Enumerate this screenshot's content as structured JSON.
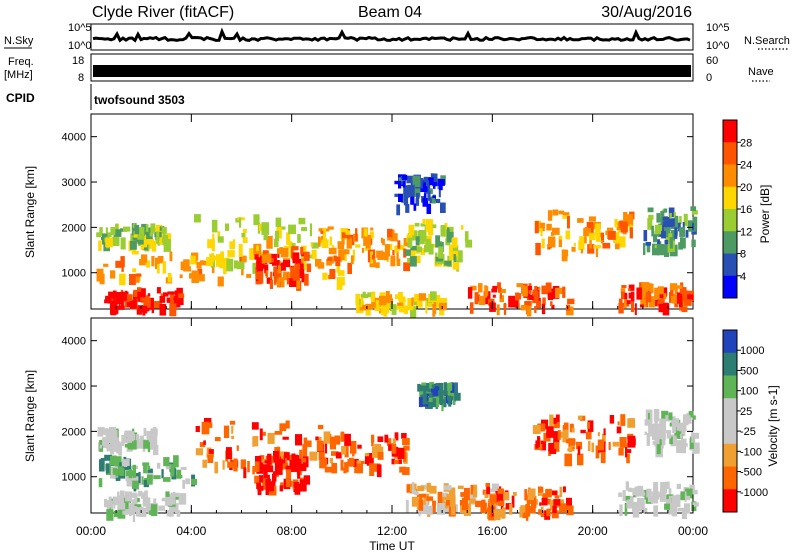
{
  "header": {
    "station": "Clyde River (fitACF)",
    "beam": "Beam 04",
    "date": "30/Aug/2016"
  },
  "top_panels": {
    "nsky_label": "N.Sky",
    "nsearch_label": "N.Search",
    "nsky_ticks": [
      "10^5",
      "10^0"
    ],
    "freq_label_line1": "Freq.",
    "freq_label_line2": "[MHz]",
    "freq_ticks": [
      "18",
      "8"
    ],
    "nave_label": "Nave",
    "nave_ticks": [
      "60",
      "0"
    ],
    "cpid_label": "CPID",
    "cpid_value": "twofsound 3503"
  },
  "colors": {
    "power_scale": [
      "#0000ff",
      "#2850b4",
      "#4e9a63",
      "#9acd32",
      "#ffd700",
      "#ff8c00",
      "#ff5500",
      "#ff0000"
    ],
    "velocity_scale": [
      "#2244bb",
      "#2e7d72",
      "#5fb455",
      "#c8c8c8",
      "#c8c8c8",
      "#f0a030",
      "#ff6600",
      "#ff0000"
    ]
  },
  "chart_data": [
    {
      "type": "heatmap",
      "name": "power",
      "ylabel": "Slant Range [km]",
      "y_ticks": [
        1000,
        2000,
        3000,
        4000
      ],
      "ylim": [
        200,
        4500
      ],
      "xlim": [
        0,
        24
      ],
      "colorbar_label": "Power [dB]",
      "colorbar_ticks": [
        "4",
        "8",
        "12",
        "16",
        "20",
        "24",
        "28"
      ],
      "bands": [
        {
          "t0": 0.5,
          "t1": 3.5,
          "r0": 250,
          "r1": 700,
          "level": 7
        },
        {
          "t0": 0.2,
          "t1": 10.0,
          "r0": 900,
          "r1": 1500,
          "level": 5
        },
        {
          "t0": 0.2,
          "t1": 3.0,
          "r0": 1700,
          "r1": 2100,
          "level": 3
        },
        {
          "t0": 4.0,
          "t1": 9.5,
          "r0": 1200,
          "r1": 2300,
          "level": 4
        },
        {
          "t0": 6.5,
          "t1": 8.5,
          "r0": 800,
          "r1": 1600,
          "level": 6
        },
        {
          "t0": 9.0,
          "t1": 12.5,
          "r0": 1200,
          "r1": 2000,
          "level": 5
        },
        {
          "t0": 10.5,
          "t1": 14.0,
          "r0": 250,
          "r1": 600,
          "level": 4
        },
        {
          "t0": 12.5,
          "t1": 15.0,
          "r0": 1200,
          "r1": 2200,
          "level": 3
        },
        {
          "t0": 15.0,
          "t1": 19.0,
          "r0": 250,
          "r1": 800,
          "level": 6
        },
        {
          "t0": 17.5,
          "t1": 21.5,
          "r0": 1500,
          "r1": 2400,
          "level": 5
        },
        {
          "t0": 21.0,
          "t1": 23.8,
          "r0": 300,
          "r1": 800,
          "level": 6
        },
        {
          "t0": 22.0,
          "t1": 24.0,
          "r0": 1600,
          "r1": 2500,
          "level": 2
        },
        {
          "t0": 12.0,
          "t1": 14.0,
          "r0": 2500,
          "r1": 3200,
          "level": 1
        }
      ]
    },
    {
      "type": "heatmap",
      "name": "velocity",
      "ylabel": "Slant Range [km]",
      "y_ticks": [
        1000,
        2000,
        3000,
        4000
      ],
      "ylim": [
        200,
        4500
      ],
      "xlim": [
        0,
        24
      ],
      "colorbar_label": "Velocity [m s-1]",
      "colorbar_ticks": [
        "1000",
        "500",
        "100",
        "25",
        "-25",
        "-100",
        "-500",
        "-1000"
      ],
      "bands": [
        {
          "t0": 0.5,
          "t1": 3.5,
          "r0": 250,
          "r1": 700,
          "level": 3
        },
        {
          "t0": 0.2,
          "t1": 4.0,
          "r0": 900,
          "r1": 1500,
          "level": 2
        },
        {
          "t0": 0.2,
          "t1": 2.5,
          "r0": 1700,
          "r1": 2100,
          "level": 3
        },
        {
          "t0": 4.0,
          "t1": 9.5,
          "r0": 1200,
          "r1": 2300,
          "level": 6
        },
        {
          "t0": 6.5,
          "t1": 8.5,
          "r0": 800,
          "r1": 1600,
          "level": 7
        },
        {
          "t0": 9.0,
          "t1": 12.5,
          "r0": 1200,
          "r1": 2000,
          "level": 6
        },
        {
          "t0": 12.5,
          "t1": 16.0,
          "r0": 300,
          "r1": 900,
          "level": 5
        },
        {
          "t0": 15.5,
          "t1": 19.0,
          "r0": 250,
          "r1": 800,
          "level": 6
        },
        {
          "t0": 17.5,
          "t1": 21.5,
          "r0": 1500,
          "r1": 2400,
          "level": 6
        },
        {
          "t0": 21.0,
          "t1": 24.0,
          "r0": 300,
          "r1": 900,
          "level": 3
        },
        {
          "t0": 22.0,
          "t1": 24.0,
          "r0": 1700,
          "r1": 2500,
          "level": 3
        },
        {
          "t0": 13.0,
          "t1": 14.5,
          "r0": 2700,
          "r1": 3100,
          "level": 1
        }
      ]
    }
  ],
  "x_axis": {
    "ticks": [
      "00:00",
      "04:00",
      "08:00",
      "12:00",
      "16:00",
      "20:00",
      "00:00"
    ],
    "label": "Time UT"
  }
}
